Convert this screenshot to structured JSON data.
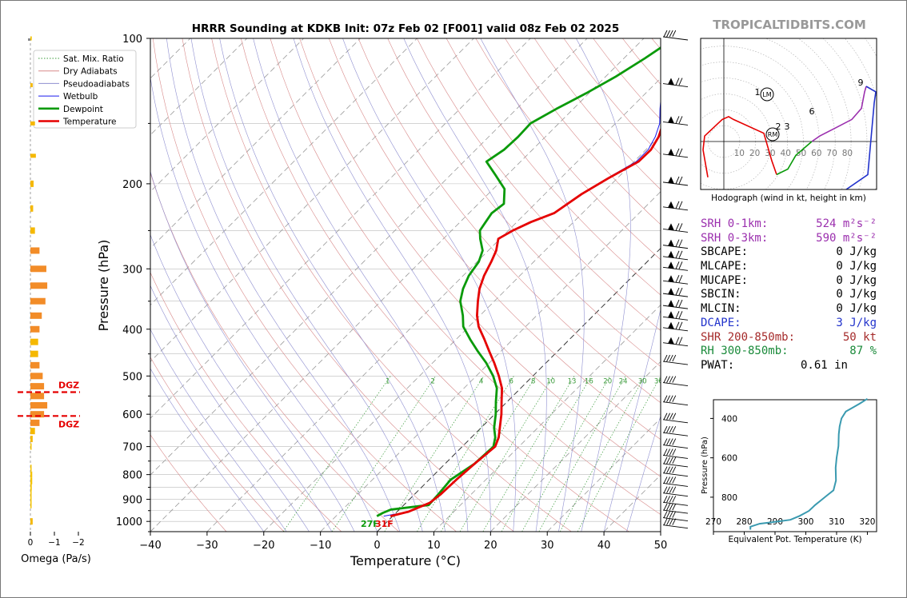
{
  "title": "HRRR Sounding at KDKB Init: 07z Feb 02 [F001] valid 08z Feb 02 2025",
  "brand": "TROPICALTIDBITS.COM",
  "colors": {
    "temperature": "#e50000",
    "dewpoint": "#0a9a0a",
    "wetbulb": "#1a1aee",
    "dry_adiabat": "#d88a8a",
    "pseudoadiabat": "#8f8fd0",
    "mixing_ratio": "#3a9a3a",
    "omega_bar": "#f5a000",
    "dgz": "#e50000",
    "magenta": "#9b2fae",
    "blue_text": "#2233cc",
    "brown_text": "#a52a2a",
    "green_text": "#1a8a3a",
    "theta_e": "#3a9ab0"
  },
  "chart_data": [
    {
      "type": "line",
      "name": "skew-t",
      "xlabel": "Temperature (°C)",
      "ylabel": "Pressure (hPa)",
      "xlim": [
        -40,
        50
      ],
      "ylim": [
        1050,
        100
      ],
      "x_ticks": [
        "−40",
        "−30",
        "−20",
        "−10",
        "0",
        "10",
        "20",
        "30",
        "40",
        "50"
      ],
      "y_ticks": [
        "100",
        "200",
        "300",
        "400",
        "500",
        "600",
        "700",
        "800",
        "900",
        "1000"
      ],
      "legend_placement": "top-left",
      "legend": [
        "Sat. Mix. Ratio",
        "Dry Adiabats",
        "Pseudoadiabats",
        "Wetbulb",
        "Dewpoint",
        "Temperature"
      ],
      "mixing_ratio_labels": [
        "1",
        "2",
        "4",
        "6",
        "8",
        "10",
        "13",
        "16",
        "20",
        "24",
        "30",
        "36"
      ],
      "surface_dewpoint_label": "27F",
      "surface_temp_label": "31F",
      "series": [
        {
          "name": "Temperature",
          "points": [
            [
              -0.4,
              975
            ],
            [
              2,
              955
            ],
            [
              4.2,
              915
            ],
            [
              4.6,
              880
            ],
            [
              4.8,
              820
            ],
            [
              5.2,
              760
            ],
            [
              5.8,
              700
            ],
            [
              4.8,
              670
            ],
            [
              3.3,
              640
            ],
            [
              1.2,
              600
            ],
            [
              -1,
              565
            ],
            [
              -3.3,
              530
            ],
            [
              -6,
              500
            ],
            [
              -9.1,
              470
            ],
            [
              -12,
              445
            ],
            [
              -15,
              420
            ],
            [
              -18.3,
              395
            ],
            [
              -20.5,
              375
            ],
            [
              -22.9,
              350
            ],
            [
              -24.8,
              330
            ],
            [
              -26.3,
              310
            ],
            [
              -27.5,
              290
            ],
            [
              -28.6,
              275
            ],
            [
              -30.3,
              260
            ],
            [
              -29.2,
              250
            ],
            [
              -27.5,
              240
            ],
            [
              -25,
              230
            ],
            [
              -23.5,
              210
            ],
            [
              -21.6,
              195
            ],
            [
              -19.2,
              180
            ],
            [
              -19.1,
              170
            ],
            [
              -20,
              160
            ],
            [
              -21.6,
              150
            ],
            [
              -24,
              140
            ],
            [
              -26.6,
              130
            ],
            [
              -29.2,
              120
            ],
            [
              -31.6,
              110
            ],
            [
              -33.7,
              100
            ]
          ]
        },
        {
          "name": "Wetbulb",
          "points": [
            [
              -1.6,
              975
            ],
            [
              2,
              955
            ],
            [
              4.2,
              915
            ],
            [
              4.6,
              880
            ],
            [
              4.8,
              820
            ],
            [
              5.2,
              760
            ],
            [
              5.8,
              700
            ],
            [
              4.8,
              670
            ],
            [
              3.3,
              640
            ],
            [
              1.2,
              600
            ],
            [
              -1,
              565
            ],
            [
              -3.3,
              530
            ],
            [
              -6,
              500
            ],
            [
              -9.1,
              470
            ],
            [
              -12,
              445
            ],
            [
              -15,
              420
            ],
            [
              -18.3,
              395
            ],
            [
              -20.5,
              375
            ],
            [
              -22.9,
              350
            ],
            [
              -24.8,
              330
            ],
            [
              -26.3,
              310
            ],
            [
              -27.5,
              290
            ],
            [
              -28.6,
              275
            ],
            [
              -30.3,
              260
            ],
            [
              -29.2,
              250
            ],
            [
              -27.5,
              240
            ],
            [
              -25,
              230
            ],
            [
              -23.5,
              210
            ],
            [
              -21.8,
              195
            ],
            [
              -19.6,
              180
            ],
            [
              -19.6,
              170
            ],
            [
              -20.6,
              160
            ],
            [
              -22.2,
              150
            ],
            [
              -24.7,
              140
            ],
            [
              -27.2,
              130
            ],
            [
              -29.8,
              120
            ],
            [
              -32.2,
              110
            ],
            [
              -34.3,
              100
            ]
          ]
        },
        {
          "name": "Dewpoint",
          "points": [
            [
              -2.8,
              975
            ],
            [
              -2.3,
              960
            ],
            [
              -1.5,
              945
            ],
            [
              4.4,
              925
            ],
            [
              4.2,
              880
            ],
            [
              3.8,
              820
            ],
            [
              5.2,
              760
            ],
            [
              5.5,
              700
            ],
            [
              4.2,
              670
            ],
            [
              2.3,
              640
            ],
            [
              0.2,
              600
            ],
            [
              -2,
              565
            ],
            [
              -4.2,
              530
            ],
            [
              -7,
              500
            ],
            [
              -10.5,
              470
            ],
            [
              -14,
              445
            ],
            [
              -17.5,
              420
            ],
            [
              -21,
              395
            ],
            [
              -23,
              375
            ],
            [
              -26,
              350
            ],
            [
              -27.7,
              330
            ],
            [
              -29,
              310
            ],
            [
              -29.7,
              290
            ],
            [
              -31,
              275
            ],
            [
              -33.5,
              260
            ],
            [
              -35,
              250
            ],
            [
              -35.5,
              240
            ],
            [
              -36,
              230
            ],
            [
              -35.5,
              220
            ],
            [
              -38,
              205
            ],
            [
              -42,
              192
            ],
            [
              -46,
              180
            ],
            [
              -45,
              170
            ],
            [
              -44.8,
              160
            ],
            [
              -45,
              150
            ],
            [
              -43,
              140
            ],
            [
              -40.5,
              130
            ],
            [
              -38.2,
              120
            ],
            [
              -36.3,
              110
            ],
            [
              -34.6,
              100
            ]
          ]
        }
      ],
      "wind_barbs_present": true
    },
    {
      "type": "bar",
      "name": "omega",
      "xlabel": "Omega (Pa/s)",
      "x_ticks": [
        "0",
        "−1",
        "−2"
      ],
      "dgz_label": "DGZ",
      "dgz_bounds_hpa": [
        540,
        605
      ],
      "bars": [
        {
          "p": 100,
          "v": -0.03
        },
        {
          "p": 125,
          "v": -0.05
        },
        {
          "p": 150,
          "v": -0.1
        },
        {
          "p": 175,
          "v": -0.12
        },
        {
          "p": 200,
          "v": -0.07
        },
        {
          "p": 225,
          "v": -0.06
        },
        {
          "p": 250,
          "v": -0.1
        },
        {
          "p": 275,
          "v": -0.2
        },
        {
          "p": 300,
          "v": -0.35
        },
        {
          "p": 325,
          "v": -0.37
        },
        {
          "p": 350,
          "v": -0.33
        },
        {
          "p": 375,
          "v": -0.25
        },
        {
          "p": 400,
          "v": -0.2
        },
        {
          "p": 425,
          "v": -0.17
        },
        {
          "p": 450,
          "v": -0.17
        },
        {
          "p": 475,
          "v": -0.2
        },
        {
          "p": 500,
          "v": -0.27
        },
        {
          "p": 525,
          "v": -0.3
        },
        {
          "p": 550,
          "v": -0.3
        },
        {
          "p": 575,
          "v": -0.37
        },
        {
          "p": 600,
          "v": -0.3
        },
        {
          "p": 625,
          "v": -0.2
        },
        {
          "p": 650,
          "v": -0.1
        },
        {
          "p": 675,
          "v": -0.05
        },
        {
          "p": 700,
          "v": 0.01
        },
        {
          "p": 775,
          "v": 0.01
        },
        {
          "p": 800,
          "v": -0.04
        },
        {
          "p": 825,
          "v": -0.04
        },
        {
          "p": 850,
          "v": -0.03
        },
        {
          "p": 875,
          "v": 0.01
        },
        {
          "p": 900,
          "v": 0.01
        },
        {
          "p": 925,
          "v": 0.01
        },
        {
          "p": 1000,
          "v": -0.05
        }
      ]
    },
    {
      "type": "line",
      "name": "hodograph",
      "xlabel": "Hodograph (wind in kt, height in km)",
      "tick_labels": [
        "10",
        "20",
        "30",
        "40",
        "50",
        "60",
        "70",
        "80"
      ],
      "height_labels": [
        "1",
        "2",
        "3",
        "6",
        "9"
      ],
      "markers": [
        "LM",
        "RM"
      ],
      "segments": [
        {
          "color": "#e50000",
          "points": [
            [
              -10,
              -13
            ],
            [
              -13,
              -3
            ],
            [
              -12,
              2
            ],
            [
              -1,
              8
            ],
            [
              3,
              9
            ],
            [
              6,
              8
            ],
            [
              25,
              3
            ],
            [
              30,
              -7
            ],
            [
              33,
              -12
            ]
          ]
        },
        {
          "color": "#0a9a0a",
          "points": [
            [
              33,
              -12
            ],
            [
              40,
              -10
            ],
            [
              45,
              -5
            ],
            [
              55,
              0
            ]
          ]
        },
        {
          "color": "#9b2fae",
          "points": [
            [
              55,
              0
            ],
            [
              60,
              2
            ],
            [
              70,
              5
            ],
            [
              80,
              8
            ],
            [
              86,
              12
            ],
            [
              88,
              18
            ],
            [
              89,
              20
            ]
          ]
        },
        {
          "color": "#2233cc",
          "points": [
            [
              89,
              20
            ],
            [
              95,
              18
            ],
            [
              94,
              14
            ],
            [
              90,
              -12
            ],
            [
              75,
              -18
            ]
          ]
        }
      ]
    },
    {
      "type": "line",
      "name": "theta-e",
      "xlabel": "Equivalent Pot. Temperature (K)",
      "ylabel": "Pressure (hPa)",
      "x_ticks": [
        "270",
        "280",
        "290",
        "300",
        "310",
        "320"
      ],
      "y_ticks": [
        "400",
        "600",
        "800"
      ],
      "points": [
        [
          282,
          965
        ],
        [
          282,
          950
        ],
        [
          285,
          935
        ],
        [
          290,
          925
        ],
        [
          295,
          915
        ],
        [
          298,
          895
        ],
        [
          301,
          870
        ],
        [
          303,
          840
        ],
        [
          305,
          815
        ],
        [
          307,
          790
        ],
        [
          309,
          765
        ],
        [
          309.8,
          715
        ],
        [
          309.7,
          650
        ],
        [
          310,
          600
        ],
        [
          310.6,
          540
        ],
        [
          310.7,
          480
        ],
        [
          311,
          440
        ],
        [
          311.6,
          400
        ],
        [
          313,
          365
        ],
        [
          317.5,
          325
        ],
        [
          320,
          300
        ]
      ]
    }
  ],
  "params": [
    {
      "label": "SRH 0-1km:",
      "value": "524 m²s⁻²",
      "color": "magenta"
    },
    {
      "label": "SRH 0-3km:",
      "value": "590 m²s⁻²",
      "color": "magenta"
    },
    {
      "label": "SBCAPE:",
      "value": "0 J/kg",
      "color": "black"
    },
    {
      "label": "MLCAPE:",
      "value": "0 J/kg",
      "color": "black"
    },
    {
      "label": "MUCAPE:",
      "value": "0 J/kg",
      "color": "black"
    },
    {
      "label": "SBCIN:",
      "value": "0 J/kg",
      "color": "black"
    },
    {
      "label": "MLCIN:",
      "value": "0 J/kg",
      "color": "black"
    },
    {
      "label": "DCAPE:",
      "value": "3 J/kg",
      "color": "blue"
    },
    {
      "label": "SHR 200-850mb:",
      "value": "50 kt",
      "color": "brown"
    },
    {
      "label": "RH 300-850mb:",
      "value": "87 %",
      "color": "green"
    },
    {
      "label": "PWAT:",
      "value": "0.61 in",
      "color": "black"
    }
  ]
}
